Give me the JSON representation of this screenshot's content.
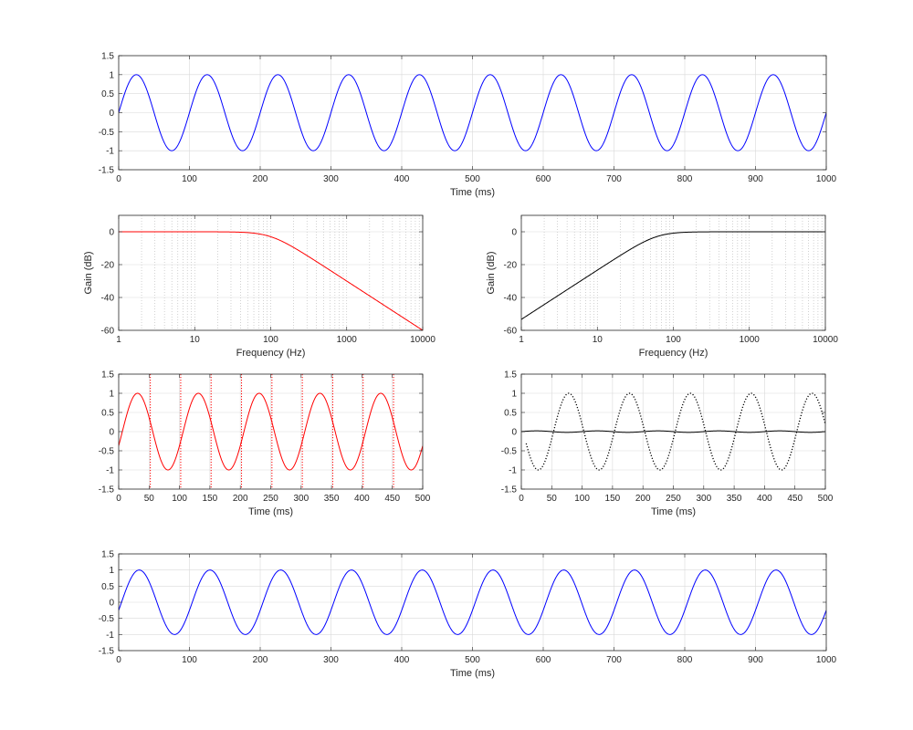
{
  "chart_data": [
    {
      "id": "p1",
      "type": "line",
      "xlabel": "Time (ms)",
      "ylabel": "",
      "xlim": [
        0,
        1000
      ],
      "ylim": [
        -1.5,
        1.5
      ],
      "xscale": "linear",
      "xticks": [
        0,
        100,
        200,
        300,
        400,
        500,
        600,
        700,
        800,
        900,
        1000
      ],
      "yticks": [
        -1.5,
        -1,
        -0.5,
        0,
        0.5,
        1,
        1.5
      ],
      "grid": "major",
      "series": [
        {
          "kind": "sine",
          "amplitude": 1,
          "period_ms": 100,
          "phase_ms": 0,
          "x_range": [
            0,
            1000
          ],
          "color": "#0000ff",
          "style": "solid"
        }
      ]
    },
    {
      "id": "p2",
      "type": "line",
      "xlabel": "Frequency (Hz)",
      "ylabel": "Gain (dB)",
      "xlim": [
        1,
        10000
      ],
      "ylim": [
        -60,
        10
      ],
      "xscale": "log",
      "xticks": [
        1,
        10,
        100,
        1000,
        10000
      ],
      "yticks": [
        -60,
        -40,
        -20,
        0
      ],
      "grid": "major+minor",
      "series": [
        {
          "kind": "butter-lowpass",
          "cutoff_hz": 100,
          "order": 1.5,
          "color": "#ff0000",
          "style": "solid"
        }
      ]
    },
    {
      "id": "p3",
      "type": "line",
      "xlabel": "Frequency (Hz)",
      "ylabel": "Gain (dB)",
      "xlim": [
        1,
        10000
      ],
      "ylim": [
        -60,
        10
      ],
      "xscale": "log",
      "xticks": [
        1,
        10,
        100,
        1000,
        10000
      ],
      "yticks": [
        -60,
        -40,
        -20,
        0
      ],
      "grid": "major+minor",
      "series": [
        {
          "kind": "butter-highpass",
          "cutoff_hz": 60,
          "order": 1.5,
          "color": "#000000",
          "style": "solid"
        }
      ]
    },
    {
      "id": "p4",
      "type": "line",
      "xlabel": "Time (ms)",
      "ylabel": "",
      "xlim": [
        0,
        500
      ],
      "ylim": [
        -1.5,
        1.5
      ],
      "xscale": "linear",
      "xticks": [
        0,
        50,
        100,
        150,
        200,
        250,
        300,
        350,
        400,
        450,
        500
      ],
      "yticks": [
        -1.5,
        -1,
        -0.5,
        0,
        0.5,
        1,
        1.5
      ],
      "grid": "major",
      "series": [
        {
          "kind": "sine",
          "amplitude": 1,
          "period_ms": 100,
          "phase_ms": -6,
          "x_range": [
            0,
            500
          ],
          "color": "#ff0000",
          "style": "solid"
        }
      ],
      "vlines": [
        52,
        102,
        152,
        202,
        252,
        302,
        352,
        402,
        452
      ],
      "vline_color": "#ff0000"
    },
    {
      "id": "p5",
      "type": "line",
      "xlabel": "Time (ms)",
      "ylabel": "",
      "xlim": [
        0,
        500
      ],
      "ylim": [
        -1.5,
        1.5
      ],
      "xscale": "linear",
      "xticks": [
        0,
        50,
        100,
        150,
        200,
        250,
        300,
        350,
        400,
        450,
        500
      ],
      "yticks": [
        -1.5,
        -1,
        -0.5,
        0,
        0.5,
        1,
        1.5
      ],
      "grid": "major",
      "series": [
        {
          "kind": "sine",
          "amplitude": 1,
          "period_ms": 100,
          "phase_ms": -53,
          "x_range": [
            8,
            500
          ],
          "color": "#000000",
          "style": "dotted"
        },
        {
          "kind": "sine",
          "amplitude": 0.02,
          "period_ms": 100,
          "phase_ms": 0,
          "x_range": [
            0,
            500
          ],
          "color": "#000000",
          "style": "solid"
        }
      ]
    },
    {
      "id": "p6",
      "type": "line",
      "xlabel": "Time (ms)",
      "ylabel": "",
      "xlim": [
        0,
        1000
      ],
      "ylim": [
        -1.5,
        1.5
      ],
      "xscale": "linear",
      "xticks": [
        0,
        100,
        200,
        300,
        400,
        500,
        600,
        700,
        800,
        900,
        1000
      ],
      "yticks": [
        -1.5,
        -1,
        -0.5,
        0,
        0.5,
        1,
        1.5
      ],
      "grid": "major",
      "series": [
        {
          "kind": "sine",
          "amplitude": 1,
          "period_ms": 100,
          "phase_ms": -4,
          "x_range": [
            0,
            1000
          ],
          "color": "#0000ff",
          "style": "solid"
        }
      ]
    }
  ]
}
